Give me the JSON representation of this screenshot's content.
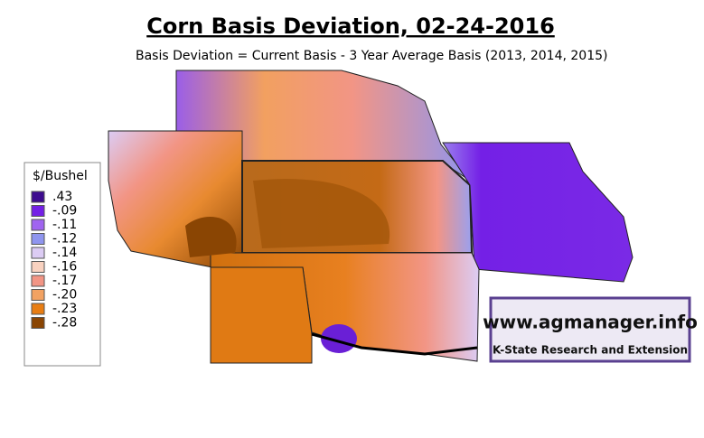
{
  "header": {
    "title": "Corn Basis Deviation, 02-24-2016",
    "subtitle": "Basis Deviation = Current Basis - 3 Year Average Basis (2013, 2014, 2015)"
  },
  "legend": {
    "title": "$/Bushel",
    "items": [
      {
        "label": ".43",
        "color": "#3d0b8f"
      },
      {
        "label": "-.09",
        "color": "#7420e6"
      },
      {
        "label": "-.11",
        "color": "#a064f0"
      },
      {
        "label": "-.12",
        "color": "#8f95ef"
      },
      {
        "label": "-.14",
        "color": "#dcccf4"
      },
      {
        "label": "-.16",
        "color": "#f9d2c0"
      },
      {
        "label": "-.17",
        "color": "#f29585"
      },
      {
        "label": "-.20",
        "color": "#f2a262"
      },
      {
        "label": "-.23",
        "color": "#e87d12"
      },
      {
        "label": "-.28",
        "color": "#8a4503"
      }
    ]
  },
  "logo": {
    "url": "www.agmanager.info",
    "org": "K-State Research and Extension"
  }
}
